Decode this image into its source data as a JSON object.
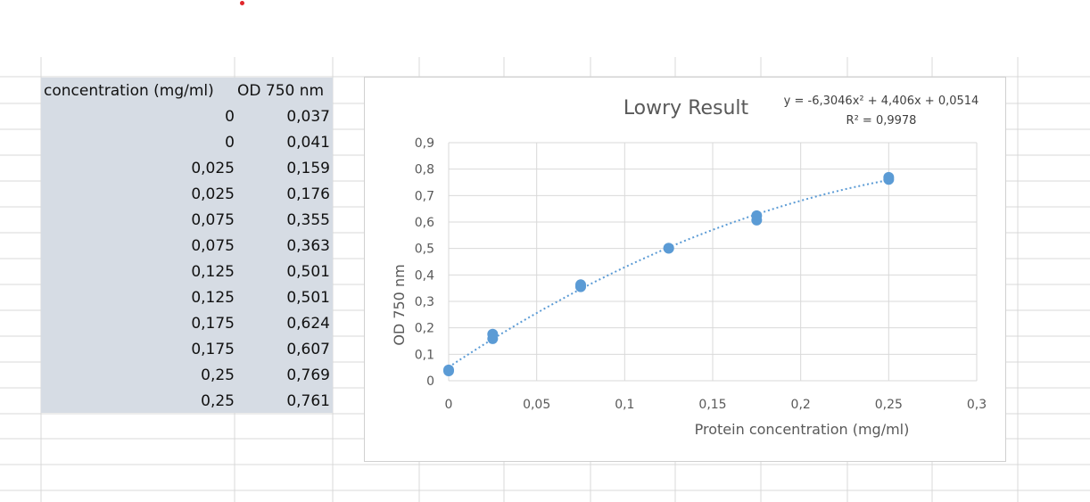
{
  "sheet": {
    "headers": [
      "concentration (mg/ml)",
      "OD 750 nm"
    ],
    "rows": [
      [
        "0",
        "0,037"
      ],
      [
        "0",
        "0,041"
      ],
      [
        "0,025",
        "0,159"
      ],
      [
        "0,025",
        "0,176"
      ],
      [
        "0,075",
        "0,355"
      ],
      [
        "0,075",
        "0,363"
      ],
      [
        "0,125",
        "0,501"
      ],
      [
        "0,125",
        "0,501"
      ],
      [
        "0,175",
        "0,624"
      ],
      [
        "0,175",
        "0,607"
      ],
      [
        "0,25",
        "0,769"
      ],
      [
        "0,25",
        "0,761"
      ]
    ]
  },
  "chart_data": {
    "type": "scatter",
    "title": "Lowry Result",
    "xlabel": "Protein concentration (mg/ml)",
    "ylabel": "OD 750 nm",
    "xlim": [
      0,
      0.3
    ],
    "ylim": [
      0,
      0.9
    ],
    "x_ticks": [
      "0",
      "0,05",
      "0,1",
      "0,15",
      "0,2",
      "0,25",
      "0,3"
    ],
    "y_ticks": [
      "0",
      "0,1",
      "0,2",
      "0,3",
      "0,4",
      "0,5",
      "0,6",
      "0,7",
      "0,8",
      "0,9"
    ],
    "grid": true,
    "series": [
      {
        "x": [
          0,
          0,
          0.025,
          0.025,
          0.075,
          0.075,
          0.125,
          0.125,
          0.175,
          0.175,
          0.25,
          0.25
        ],
        "y": [
          0.037,
          0.041,
          0.159,
          0.176,
          0.355,
          0.363,
          0.501,
          0.501,
          0.624,
          0.607,
          0.769,
          0.761
        ]
      }
    ],
    "trendline": {
      "type": "polynomial",
      "coefficients": [
        -6.3046,
        4.406,
        0.0514
      ],
      "equation": "y = -6,3046x² + 4,406x + 0,0514",
      "r_squared": "R² = 0,9978"
    },
    "colors": {
      "points": "#5b9bd5",
      "trendline": "#5b9bd5",
      "table_fill": "#d6dce4"
    }
  }
}
